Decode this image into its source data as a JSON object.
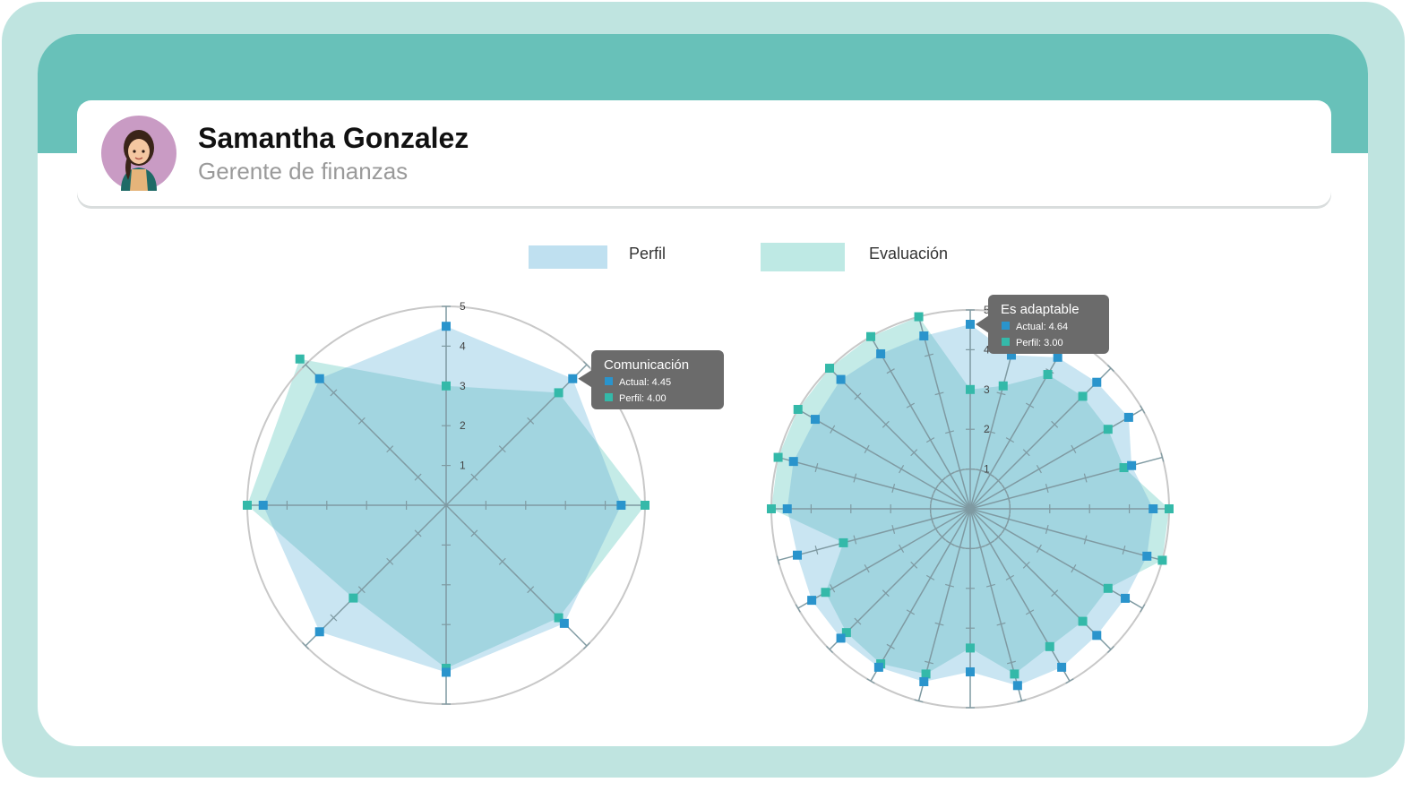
{
  "profile": {
    "name": "Samantha Gonzalez",
    "role": "Gerente de finanzas",
    "avatar_icon": "woman-avatar-icon"
  },
  "colors": {
    "outer_frame": "#bfe4e0",
    "header_band": "#68c1b9",
    "perfil_fill": "#bfe0f0",
    "evaluacion_fill": "#bee9e4",
    "actual_marker": "#2a94cc",
    "perfil_marker": "#34b9a9",
    "tooltip_bg": "#6b6b6b"
  },
  "legend": [
    {
      "label": "Perfil",
      "color": "#bfe0f0"
    },
    {
      "label": "Evaluación",
      "color": "#bee9e4"
    }
  ],
  "chart_data": [
    {
      "type": "radar",
      "axis_count": 8,
      "rmax": 5,
      "ticks": [
        "1",
        "2",
        "3",
        "4",
        "5"
      ],
      "series": [
        {
          "name": "Actual",
          "values": [
            4.5,
            4.5,
            4.4,
            4.2,
            4.2,
            4.5,
            4.6,
            4.5
          ]
        },
        {
          "name": "Perfil",
          "values": [
            3.0,
            4.0,
            5.0,
            4.0,
            4.1,
            3.3,
            5.0,
            5.2
          ]
        }
      ],
      "tooltip": {
        "title": "Comunicación",
        "lines": [
          "Actual: 4.45",
          "Perfil: 4.00"
        ]
      }
    },
    {
      "type": "radar",
      "axis_count": 24,
      "rmax": 5,
      "ticks": [
        "1",
        "2",
        "3",
        "4",
        "5"
      ],
      "series": [
        {
          "name": "Actual",
          "values": [
            4.64,
            4.0,
            4.4,
            4.5,
            4.6,
            4.2,
            4.6,
            4.6,
            4.5,
            4.5,
            4.6,
            4.6,
            4.1,
            4.5,
            4.6,
            4.6,
            4.6,
            4.5,
            4.6,
            4.6,
            4.5,
            4.6,
            4.5,
            4.5
          ]
        },
        {
          "name": "Perfil",
          "values": [
            3.0,
            3.2,
            3.9,
            4.0,
            4.0,
            4.0,
            5.0,
            5.0,
            4.0,
            4.0,
            4.0,
            4.3,
            3.5,
            4.3,
            4.5,
            4.4,
            4.2,
            3.3,
            5.0,
            5.0,
            5.0,
            5.0,
            5.0,
            5.0
          ]
        }
      ],
      "tooltip": {
        "title": "Es adaptable",
        "lines": [
          "Actual: 4.64",
          "Perfil: 3.00"
        ]
      }
    }
  ]
}
